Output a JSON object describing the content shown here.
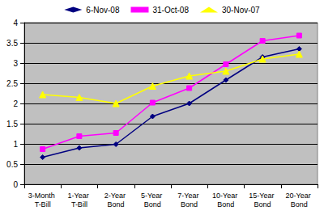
{
  "chart_data": {
    "type": "line",
    "categories": [
      "3-Month T-Bill",
      "1-Year T-Bill",
      "2-Year Bond",
      "5-Year Bond",
      "7-Year Bond",
      "10-Year Bond",
      "15-Year Bond",
      "20-Year Bond"
    ],
    "series": [
      {
        "name": "6-Nov-08",
        "color": "#000080",
        "marker": "diamond",
        "values": [
          0.67,
          0.9,
          0.99,
          1.68,
          2.0,
          2.58,
          3.15,
          3.35
        ]
      },
      {
        "name": "31-Oct-08",
        "color": "#ff00ff",
        "marker": "square",
        "values": [
          0.87,
          1.19,
          1.27,
          2.02,
          2.38,
          2.97,
          3.55,
          3.68
        ]
      },
      {
        "name": "30-Nov-07",
        "color": "#ffff00",
        "marker": "triangle",
        "values": [
          2.22,
          2.15,
          2.0,
          2.43,
          2.68,
          2.8,
          3.1,
          3.22
        ]
      }
    ],
    "ylim": [
      0,
      4
    ],
    "yticks": [
      0,
      0.5,
      1,
      1.5,
      2,
      2.5,
      3,
      3.5,
      4
    ],
    "grid": true,
    "legend": "top"
  }
}
